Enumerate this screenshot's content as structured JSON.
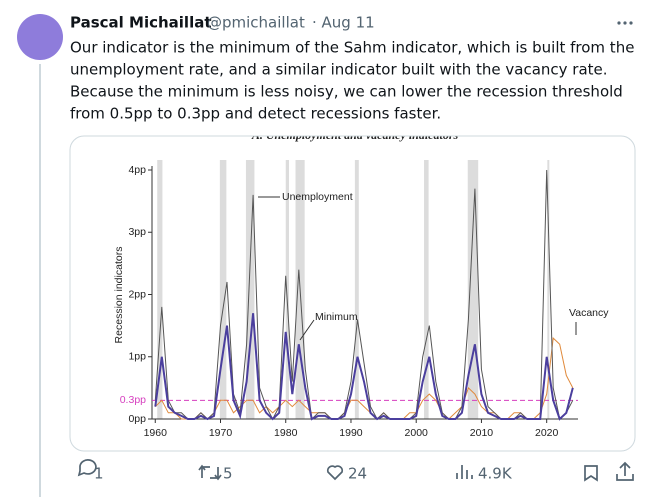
{
  "tweet": {
    "name": "Pascal Michaillat",
    "handle": "@pmichaillat",
    "date": "· Aug 11",
    "text": [
      "Our indicator is the minimum of the Sahm indicator, which is built from the",
      "unemployment rate, and a similar indicator built with the vacancy rate.",
      "Because the minimum is less noisy, we can lower the recession threshold",
      "from 0.5pp to 0.3pp and detect recessions faster."
    ],
    "replies": "1",
    "reposts": "5",
    "likes": "24",
    "views": "4.9K"
  },
  "chart_data": {
    "type": "line",
    "title": "A. Unemployment and vacancy indicators",
    "ylabel": "Recession indicators",
    "x": [
      1960,
      1961,
      1962,
      1963,
      1964,
      1965,
      1966,
      1967,
      1968,
      1969,
      1970,
      1971,
      1972,
      1973,
      1974,
      1975,
      1976,
      1977,
      1978,
      1979,
      1980,
      1981,
      1982,
      1983,
      1984,
      1985,
      1986,
      1987,
      1988,
      1989,
      1990,
      1991,
      1992,
      1993,
      1994,
      1995,
      1996,
      1997,
      1998,
      1999,
      2000,
      2001,
      2002,
      2003,
      2004,
      2005,
      2006,
      2007,
      2008,
      2009,
      2010,
      2011,
      2012,
      2013,
      2014,
      2015,
      2016,
      2017,
      2018,
      2019,
      2020,
      2021,
      2022,
      2023,
      2024
    ],
    "series": [
      {
        "name": "Unemployment",
        "color": "#555555",
        "values": [
          0.3,
          1.8,
          0.3,
          0.1,
          0.1,
          0,
          0,
          0.1,
          0,
          0.1,
          1.5,
          2.2,
          0.4,
          0.1,
          1.2,
          3.6,
          0.5,
          0.2,
          0,
          0.2,
          2.3,
          0.6,
          2.4,
          0.8,
          0,
          0.1,
          0.1,
          0,
          0,
          0.1,
          0.6,
          1.6,
          0.9,
          0.2,
          0,
          0.1,
          0,
          0,
          0,
          0,
          0.1,
          1.0,
          1.5,
          0.6,
          0.1,
          0,
          0,
          0.2,
          1.6,
          3.7,
          0.8,
          0.2,
          0.1,
          0,
          0,
          0,
          0.1,
          0,
          0,
          0,
          4,
          0.5,
          0,
          0.1,
          0.3
        ]
      },
      {
        "name": "Minimum",
        "color": "#4b3f9e",
        "values": [
          0.2,
          1.0,
          0.2,
          0.1,
          0.05,
          0,
          0,
          0.05,
          0,
          0.05,
          0.8,
          1.5,
          0.3,
          0.05,
          0.6,
          1.7,
          0.3,
          0.1,
          0,
          0.1,
          1.4,
          0.4,
          1.2,
          0.5,
          0,
          0.05,
          0.05,
          0,
          0,
          0.05,
          0.4,
          1.0,
          0.6,
          0.1,
          0,
          0.05,
          0,
          0,
          0,
          0,
          0.05,
          0.6,
          1.0,
          0.4,
          0.05,
          0,
          0,
          0.1,
          0.7,
          1.2,
          0.4,
          0.1,
          0.05,
          0,
          0,
          0,
          0.05,
          0,
          0,
          0,
          1.0,
          0.3,
          0,
          0.1,
          0.5
        ]
      },
      {
        "name": "Vacancy",
        "color": "#e08a3c",
        "values": [
          0.2,
          0.3,
          0.1,
          0.1,
          0,
          0,
          0,
          0.1,
          0,
          0.1,
          0.3,
          0.3,
          0.1,
          0.2,
          0.3,
          0.3,
          0.1,
          0.2,
          0.1,
          0.2,
          0.3,
          0.2,
          0.3,
          0.2,
          0.1,
          0.1,
          0.1,
          0,
          0,
          0.1,
          0.3,
          0.3,
          0.2,
          0.1,
          0,
          0.1,
          0,
          0,
          0,
          0.1,
          0.1,
          0.3,
          0.4,
          0.3,
          0.1,
          0,
          0.1,
          0.2,
          0.5,
          0.4,
          0.2,
          0.1,
          0.1,
          0,
          0,
          0.1,
          0.1,
          0,
          0,
          0.1,
          0.4,
          1.3,
          1.2,
          0.7,
          0.5
        ]
      }
    ],
    "recessions": [
      [
        1960.3,
        1961.1
      ],
      [
        1969.9,
        1970.9
      ],
      [
        1973.9,
        1975.2
      ],
      [
        1980.0,
        1980.5
      ],
      [
        1981.5,
        1982.9
      ],
      [
        1990.6,
        1991.2
      ],
      [
        2001.2,
        2001.9
      ],
      [
        2007.9,
        2009.5
      ],
      [
        2020.1,
        2020.4
      ]
    ],
    "threshold": {
      "value": 0.3,
      "label": "0.3pp",
      "color": "#d63fbf"
    },
    "annotations": [
      "Unemployment",
      "Minimum",
      "Vacancy"
    ],
    "xlim": [
      1959.5,
      2024.8
    ],
    "ylim": [
      0,
      4
    ],
    "xticks": [
      1960,
      1970,
      1980,
      1990,
      2000,
      2010,
      2020
    ],
    "yticks": [
      {
        "value": 0,
        "label": "0pp"
      },
      {
        "value": 1,
        "label": "1pp"
      },
      {
        "value": 2,
        "label": "2pp"
      },
      {
        "value": 3,
        "label": "3pp"
      },
      {
        "value": 4,
        "label": "4pp"
      }
    ]
  }
}
